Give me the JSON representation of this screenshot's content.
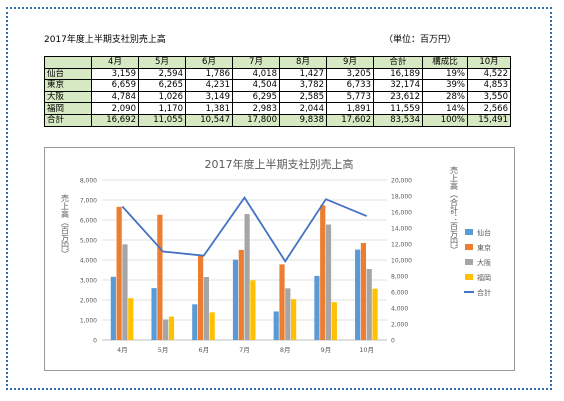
{
  "header": {
    "title": "2017年度上半期支社別売上高",
    "unit": "（単位：百万円）"
  },
  "table": {
    "columns": [
      "",
      "4月",
      "5月",
      "6月",
      "7月",
      "8月",
      "9月",
      "合計",
      "構成比",
      "10月"
    ],
    "rows": [
      {
        "label": "仙台",
        "values": [
          "3,159",
          "2,594",
          "1,786",
          "4,018",
          "1,427",
          "3,205",
          "16,189",
          "19%",
          "4,522"
        ]
      },
      {
        "label": "東京",
        "values": [
          "6,659",
          "6,265",
          "4,231",
          "4,504",
          "3,782",
          "6,733",
          "32,174",
          "39%",
          "4,853"
        ]
      },
      {
        "label": "大阪",
        "values": [
          "4,784",
          "1,026",
          "3,149",
          "6,295",
          "2,585",
          "5,773",
          "23,612",
          "28%",
          "3,550"
        ]
      },
      {
        "label": "福岡",
        "values": [
          "2,090",
          "1,170",
          "1,381",
          "2,983",
          "2,044",
          "1,891",
          "11,559",
          "14%",
          "2,566"
        ]
      },
      {
        "label": "合計",
        "values": [
          "16,692",
          "11,055",
          "10,547",
          "17,800",
          "9,838",
          "17,602",
          "83,534",
          "100%",
          "15,491"
        ]
      }
    ]
  },
  "chart_data": {
    "type": "bar",
    "title": "2017年度上半期支社別売上高",
    "categories": [
      "4月",
      "5月",
      "6月",
      "7月",
      "8月",
      "9月",
      "10月"
    ],
    "ylabel": "売上高（百万円）",
    "y2label": "売上高（合計：百万円）",
    "ylim": [
      0,
      8000
    ],
    "y2lim": [
      0,
      20000
    ],
    "yticks": [
      "0",
      "1,000",
      "2,000",
      "3,000",
      "4,000",
      "5,000",
      "6,000",
      "7,000",
      "8,000"
    ],
    "y2ticks": [
      "0",
      "2,000",
      "4,000",
      "6,000",
      "8,000",
      "10,000",
      "12,000",
      "14,000",
      "16,000",
      "18,000",
      "20,000"
    ],
    "legend_position": "right",
    "series": [
      {
        "name": "仙台",
        "color": "#5b9bd5",
        "values": [
          3159,
          2594,
          1786,
          4018,
          1427,
          3205,
          4522
        ]
      },
      {
        "name": "東京",
        "color": "#ed7d31",
        "values": [
          6659,
          6265,
          4231,
          4504,
          3782,
          6733,
          4853
        ]
      },
      {
        "name": "大阪",
        "color": "#a5a5a5",
        "values": [
          4784,
          1026,
          3149,
          6295,
          2585,
          5773,
          3550
        ]
      },
      {
        "name": "福岡",
        "color": "#ffc000",
        "values": [
          2090,
          1170,
          1381,
          2983,
          2044,
          1891,
          2566
        ]
      }
    ],
    "line_series": {
      "name": "合計",
      "color": "#4472c4",
      "axis": "secondary",
      "values": [
        16692,
        11055,
        10547,
        17800,
        9838,
        17602,
        15491
      ]
    }
  }
}
